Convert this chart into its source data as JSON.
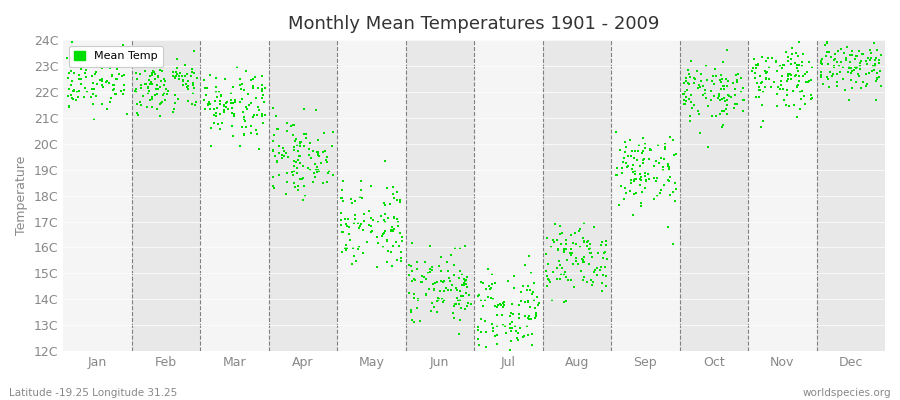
{
  "title": "Monthly Mean Temperatures 1901 - 2009",
  "ylabel": "Temperature",
  "xlabel_bottom": "Latitude -19.25 Longitude 31.25",
  "watermark": "worldspecies.org",
  "legend_label": "Mean Temp",
  "dot_color": "#00dd00",
  "dot_size": 3,
  "bg_color_light": "#f5f5f5",
  "bg_color_dark": "#e8e8e8",
  "title_fontsize": 13,
  "axis_fontsize": 9,
  "tick_fontsize": 9,
  "legend_fontsize": 8,
  "months": [
    "Jan",
    "Feb",
    "Mar",
    "Apr",
    "May",
    "Jun",
    "Jul",
    "Aug",
    "Sep",
    "Oct",
    "Nov",
    "Dec"
  ],
  "monthly_means": [
    22.5,
    22.3,
    21.5,
    19.5,
    17.0,
    14.5,
    13.5,
    15.5,
    19.0,
    22.0,
    22.5,
    23.0
  ],
  "monthly_stds": [
    0.55,
    0.55,
    0.65,
    0.75,
    0.85,
    0.85,
    0.85,
    0.75,
    0.75,
    0.65,
    0.65,
    0.55
  ],
  "ylim_min": 12,
  "ylim_max": 24,
  "ytick_labels": [
    "12C",
    "13C",
    "14C",
    "15C",
    "16C",
    "17C",
    "18C",
    "19C",
    "20C",
    "21C",
    "22C",
    "23C",
    "24C"
  ],
  "ytick_values": [
    12,
    13,
    14,
    15,
    16,
    17,
    18,
    19,
    20,
    21,
    22,
    23,
    24
  ]
}
